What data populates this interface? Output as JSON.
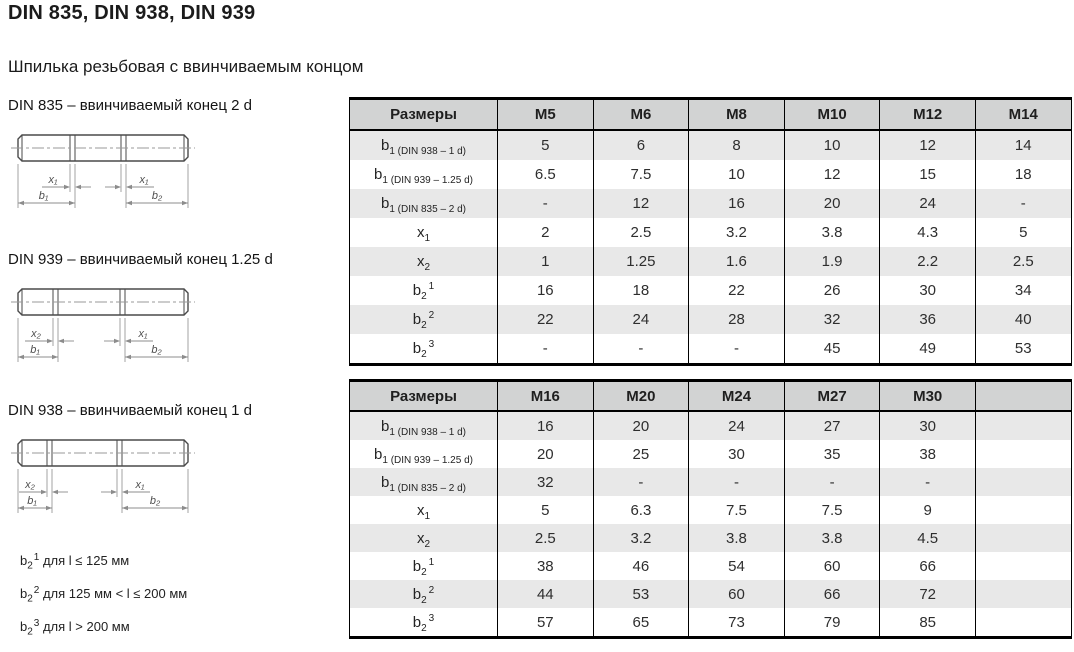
{
  "page": {
    "title": "DIN 835, DIN 938, DIN 939",
    "subtitle": "Шпилька резьбовая с ввинчиваемым концом"
  },
  "diagrams": [
    {
      "caption": "DIN 835 – ввинчиваемый конец 2 d",
      "labels": {
        "left_x": "x₁",
        "left_b": "b₁",
        "right_x": "x₁",
        "right_b": "b₂"
      }
    },
    {
      "caption": "DIN 939 – ввинчиваемый конец 1.25 d",
      "labels": {
        "left_x": "x₂",
        "left_b": "b₁",
        "right_x": "x₁",
        "right_b": "b₂"
      }
    },
    {
      "caption": "DIN 938 – ввинчиваемый конец 1 d",
      "labels": {
        "left_x": "x₂",
        "left_b": "b₁",
        "right_x": "x₁",
        "right_b": "b₂"
      }
    }
  ],
  "footnotes": [
    {
      "base": "b",
      "sub": "2",
      "sup": "1",
      "text": "для l ≤ 125 мм"
    },
    {
      "base": "b",
      "sub": "2",
      "sup": "2",
      "text": "для 125 мм < l ≤ 200 мм"
    },
    {
      "base": "b",
      "sub": "2",
      "sup": "3",
      "text": "для l > 200 мм"
    }
  ],
  "tables": [
    {
      "header": [
        "Размеры",
        "M5",
        "M6",
        "M8",
        "M10",
        "M12",
        "M14"
      ],
      "rows": [
        {
          "label": {
            "base": "b",
            "sub": "1 (DIN 938 – 1 d)",
            "sup": ""
          },
          "values": [
            "5",
            "6",
            "8",
            "10",
            "12",
            "14"
          ]
        },
        {
          "label": {
            "base": "b",
            "sub": "1 (DIN 939 – 1.25 d)",
            "sup": ""
          },
          "values": [
            "6.5",
            "7.5",
            "10",
            "12",
            "15",
            "18"
          ]
        },
        {
          "label": {
            "base": "b",
            "sub": "1 (DIN 835 – 2 d)",
            "sup": ""
          },
          "values": [
            "-",
            "12",
            "16",
            "20",
            "24",
            "-"
          ]
        },
        {
          "label": {
            "base": "x",
            "sub": "1",
            "sup": ""
          },
          "values": [
            "2",
            "2.5",
            "3.2",
            "3.8",
            "4.3",
            "5"
          ]
        },
        {
          "label": {
            "base": "x",
            "sub": "2",
            "sup": ""
          },
          "values": [
            "1",
            "1.25",
            "1.6",
            "1.9",
            "2.2",
            "2.5"
          ]
        },
        {
          "label": {
            "base": "b",
            "sub": "2",
            "sup": "1"
          },
          "values": [
            "16",
            "18",
            "22",
            "26",
            "30",
            "34"
          ]
        },
        {
          "label": {
            "base": "b",
            "sub": "2",
            "sup": "2"
          },
          "values": [
            "22",
            "24",
            "28",
            "32",
            "36",
            "40"
          ]
        },
        {
          "label": {
            "base": "b",
            "sub": "2",
            "sup": "3"
          },
          "values": [
            "-",
            "-",
            "-",
            "45",
            "49",
            "53"
          ]
        }
      ]
    },
    {
      "header": [
        "Размеры",
        "M16",
        "M20",
        "M24",
        "M27",
        "M30",
        ""
      ],
      "rows": [
        {
          "label": {
            "base": "b",
            "sub": "1 (DIN 938 – 1 d)",
            "sup": ""
          },
          "values": [
            "16",
            "20",
            "24",
            "27",
            "30",
            ""
          ]
        },
        {
          "label": {
            "base": "b",
            "sub": "1 (DIN 939 – 1.25 d)",
            "sup": ""
          },
          "values": [
            "20",
            "25",
            "30",
            "35",
            "38",
            ""
          ]
        },
        {
          "label": {
            "base": "b",
            "sub": "1 (DIN 835 – 2 d)",
            "sup": ""
          },
          "values": [
            "32",
            "-",
            "-",
            "-",
            "-",
            ""
          ]
        },
        {
          "label": {
            "base": "x",
            "sub": "1",
            "sup": ""
          },
          "values": [
            "5",
            "6.3",
            "7.5",
            "7.5",
            "9",
            ""
          ]
        },
        {
          "label": {
            "base": "x",
            "sub": "2",
            "sup": ""
          },
          "values": [
            "2.5",
            "3.2",
            "3.8",
            "3.8",
            "4.5",
            ""
          ]
        },
        {
          "label": {
            "base": "b",
            "sub": "2",
            "sup": "1"
          },
          "values": [
            "38",
            "46",
            "54",
            "60",
            "66",
            ""
          ]
        },
        {
          "label": {
            "base": "b",
            "sub": "2",
            "sup": "2"
          },
          "values": [
            "44",
            "53",
            "60",
            "66",
            "72",
            ""
          ]
        },
        {
          "label": {
            "base": "b",
            "sub": "2",
            "sup": "3"
          },
          "values": [
            "57",
            "65",
            "73",
            "79",
            "85",
            ""
          ]
        }
      ]
    }
  ],
  "colors": {
    "header_bg": "#d2d3d3",
    "row_alt_bg": "#e8e8e8",
    "border": "#000000",
    "drawing_line": "#4a4a4a",
    "dimension_line": "#8c8c8c"
  }
}
